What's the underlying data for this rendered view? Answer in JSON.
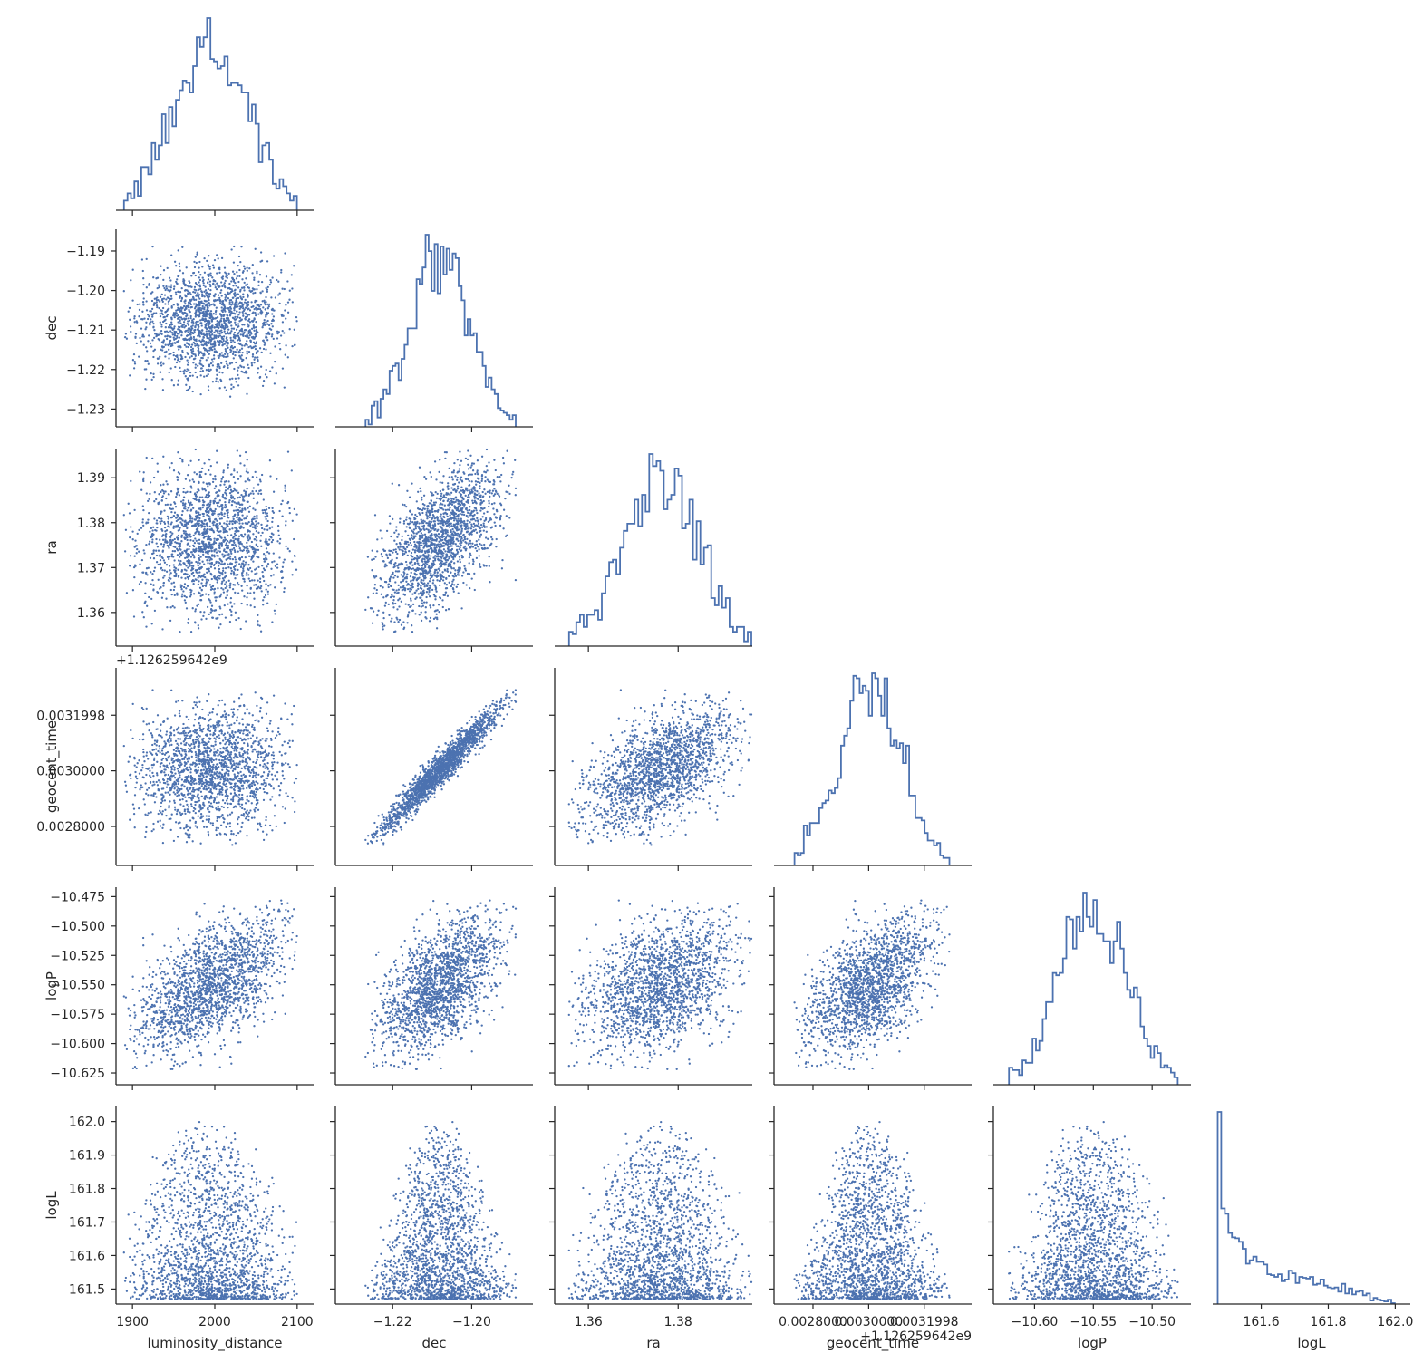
{
  "chart_data": {
    "type": "pairplot",
    "variables": [
      "luminosity_distance",
      "dec",
      "ra",
      "geocent_time",
      "logP",
      "logL"
    ],
    "axes": {
      "luminosity_distance": {
        "label": "luminosity_distance",
        "ticks": [
          1900,
          2000,
          2100
        ],
        "tick_labels": [
          "1900",
          "2000",
          "2100"
        ],
        "range": [
          1880,
          2120
        ],
        "center": 1995,
        "sd": 45
      },
      "dec": {
        "label": "dec",
        "ticks": [
          -1.23,
          -1.22,
          -1.21,
          -1.2,
          -1.19
        ],
        "tick_labels": [
          "−1.23",
          "−1.22",
          "−1.21",
          "−1.20",
          "−1.19"
        ],
        "x_ticks": [
          -1.22,
          -1.2
        ],
        "x_tick_labels": [
          "−1.22",
          "−1.20"
        ],
        "range": [
          -1.2345,
          -1.1845
        ],
        "center": -1.208,
        "sd": 0.008
      },
      "ra": {
        "label": "ra",
        "ticks": [
          1.36,
          1.37,
          1.38,
          1.39
        ],
        "tick_labels": [
          "1.36",
          "1.37",
          "1.38",
          "1.39"
        ],
        "x_ticks": [
          1.36,
          1.38
        ],
        "x_tick_labels": [
          "1.36",
          "1.38"
        ],
        "range": [
          1.3525,
          1.3965
        ],
        "center": 1.376,
        "sd": 0.0085
      },
      "geocent_time": {
        "label": "geocent_time",
        "offset_label": "+1.126259642e9",
        "ticks": [
          0.0028,
          0.003,
          0.0031998
        ],
        "tick_labels": [
          "0.0028000",
          "0.0030000",
          "0.0031998"
        ],
        "range": [
          0.00266,
          0.00337
        ],
        "center": 0.003005,
        "sd": 0.00012
      },
      "logP": {
        "label": "logP",
        "ticks": [
          -10.625,
          -10.6,
          -10.575,
          -10.55,
          -10.525,
          -10.5,
          -10.475
        ],
        "tick_labels": [
          "−10.625",
          "−10.600",
          "−10.575",
          "−10.550",
          "−10.525",
          "−10.500",
          "−10.475"
        ],
        "x_ticks": [
          -10.6,
          -10.55,
          -10.5
        ],
        "x_tick_labels": [
          "−10.60",
          "−10.55",
          "−10.50"
        ],
        "range": [
          -10.635,
          -10.467
        ],
        "center": -10.55,
        "sd": 0.03
      },
      "logL": {
        "label": "logL",
        "ticks": [
          161.5,
          161.6,
          161.7,
          161.8,
          161.9,
          162.0
        ],
        "tick_labels": [
          "161.5",
          "161.6",
          "161.7",
          "161.8",
          "161.9",
          "162.0"
        ],
        "x_ticks": [
          161.6,
          161.8,
          162.0
        ],
        "x_tick_labels": [
          "161.6",
          "161.8",
          "162.0"
        ],
        "range": [
          161.455,
          162.045
        ]
      }
    },
    "correlations": {
      "dec|geocent_time": 0.97,
      "dec|ra": 0.6,
      "ra|geocent_time": 0.58,
      "luminosity_distance|logP": 0.55,
      "dec|logP": 0.55,
      "ra|logP": 0.4,
      "geocent_time|logP": 0.55
    },
    "n_samples": 1800,
    "histogram_bins": 50,
    "diagonal": "step histogram",
    "lower_triangle": "scatter",
    "upper_triangle": "empty",
    "logL_distribution": {
      "min": 161.47,
      "max": 162.02,
      "shape": "decreasing"
    },
    "color": "#4c72b0",
    "grid": false
  }
}
